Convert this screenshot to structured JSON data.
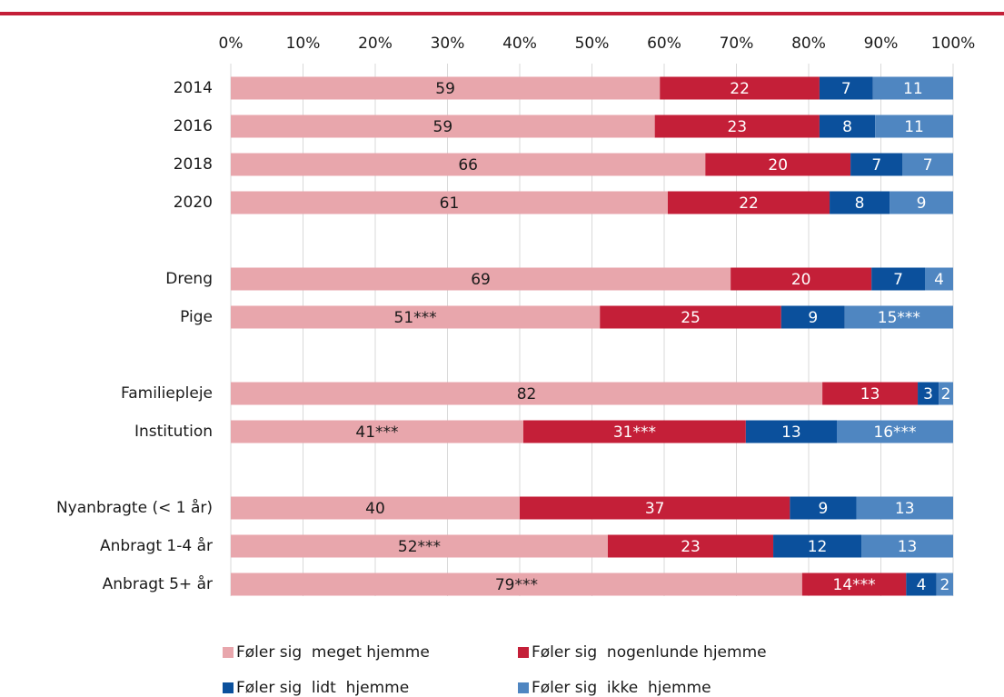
{
  "chart_data": {
    "type": "stacked_barh",
    "categories": [
      "2014",
      "2016",
      "2018",
      "2020",
      null,
      "Dreng",
      "Pige",
      null,
      "Familiepleje",
      "Institution",
      null,
      "Nyanbragte (< 1 år)",
      "Anbragt 1-4 år",
      "Anbragt 5+ år"
    ],
    "series": [
      {
        "name": "Føler sig  meget hjemme",
        "color": "#e8a6ac",
        "label_color": "#1a1a1a",
        "values": [
          59.4,
          58.7,
          65.7,
          60.5,
          null,
          69.2,
          51.1,
          null,
          81.9,
          40.5,
          null,
          40.0,
          52.2,
          79.1
        ],
        "value_labels": [
          "59",
          "59",
          "66",
          "61",
          null,
          "69",
          "51***",
          null,
          "82",
          "41***",
          null,
          "40",
          "52***",
          "79***"
        ]
      },
      {
        "name": "Føler sig  nogenlunde hjemme",
        "color": "#c41f38",
        "label_color": "#ffffff",
        "values": [
          22.1,
          22.8,
          20.1,
          22.4,
          null,
          19.5,
          25.1,
          null,
          13.2,
          30.8,
          null,
          37.4,
          22.9,
          14.4
        ],
        "value_labels": [
          "22",
          "23",
          "20",
          "22",
          null,
          "20",
          "25",
          null,
          "13",
          "31***",
          null,
          "37",
          "23",
          "14***"
        ]
      },
      {
        "name": "Føler sig  lidt  hjemme",
        "color": "#0b509c",
        "label_color": "#ffffff",
        "values": [
          7.4,
          7.7,
          7.2,
          8.3,
          null,
          7.4,
          8.8,
          null,
          2.9,
          12.6,
          null,
          9.2,
          12.2,
          4.2
        ],
        "value_labels": [
          "7",
          "8",
          "7",
          "8",
          null,
          "7",
          "9",
          null,
          "3",
          "13",
          null,
          "9",
          "12",
          "4"
        ]
      },
      {
        "name": "Føler sig  ikke  hjemme",
        "color": "#4f86c1",
        "label_color": "#ffffff",
        "values": [
          11.1,
          10.8,
          7.0,
          8.8,
          null,
          3.9,
          15.0,
          null,
          2.0,
          16.1,
          null,
          13.4,
          12.7,
          2.3
        ],
        "value_labels": [
          "11",
          "11",
          "7",
          "9",
          null,
          "4",
          "15***",
          null,
          "2",
          "16***",
          null,
          "13",
          "13",
          "2"
        ]
      }
    ],
    "xlim": [
      0,
      100
    ],
    "xticks": [
      {
        "value": 0,
        "label": "0%"
      },
      {
        "value": 10,
        "label": "10%"
      },
      {
        "value": 20,
        "label": "20%"
      },
      {
        "value": 30,
        "label": "30%"
      },
      {
        "value": 40,
        "label": "40%"
      },
      {
        "value": 50,
        "label": "50%"
      },
      {
        "value": 60,
        "label": "60%"
      },
      {
        "value": 70,
        "label": "70%"
      },
      {
        "value": 80,
        "label": "80%"
      },
      {
        "value": 90,
        "label": "90%"
      },
      {
        "value": 100,
        "label": "100%"
      }
    ],
    "grid": true
  }
}
